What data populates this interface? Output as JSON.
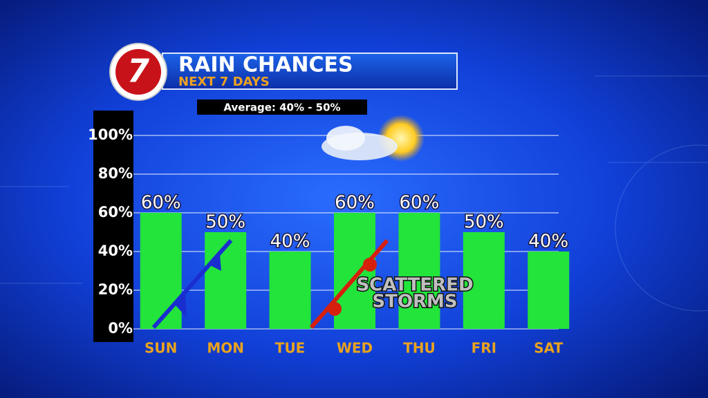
{
  "chart_data": {
    "type": "bar",
    "logo": "7",
    "title": "RAIN CHANCES",
    "subtitle": "NEXT 7 DAYS",
    "annotation": "Average: 40% - 50%",
    "storm_label": [
      "SCATTERED",
      "STORMS"
    ],
    "categories": [
      "SUN",
      "MON",
      "TUE",
      "WED",
      "THU",
      "FRI",
      "SAT"
    ],
    "values": [
      60,
      50,
      40,
      60,
      60,
      50,
      40
    ],
    "value_labels": [
      "60%",
      "50%",
      "40%",
      "60%",
      "60%",
      "50%",
      "40%"
    ],
    "color": "#22e43a",
    "ylim": [
      0,
      100
    ],
    "yticks": [
      {
        "value": 0,
        "label": "0%"
      },
      {
        "value": 20,
        "label": "20%"
      },
      {
        "value": 40,
        "label": "40%"
      },
      {
        "value": 60,
        "label": "60%"
      },
      {
        "value": 80,
        "label": "80%"
      },
      {
        "value": 100,
        "label": "100%"
      }
    ],
    "grid": true
  }
}
